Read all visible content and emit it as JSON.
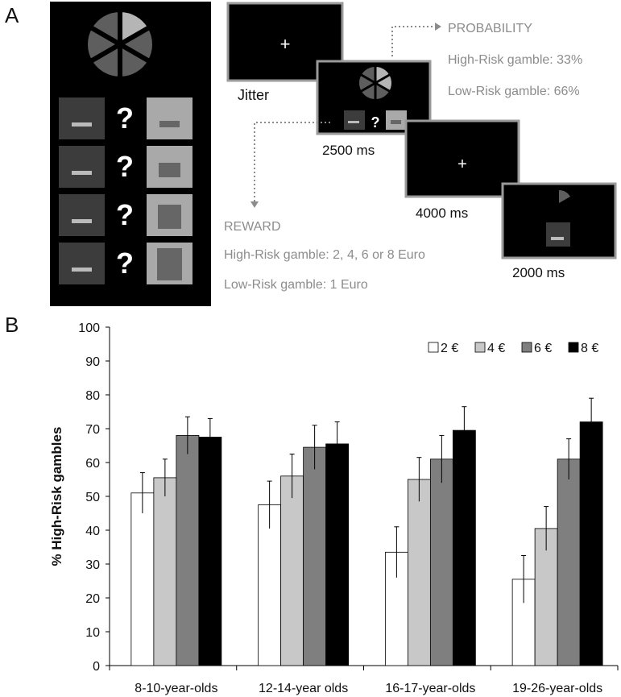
{
  "panels": {
    "a": "A",
    "b": "B"
  },
  "task": {
    "question_mark": "?",
    "fixation": "+",
    "jitter_label": "Jitter",
    "timings": [
      "2500 ms",
      "4000 ms",
      "2000 ms"
    ],
    "probability": {
      "heading": "PROBABILITY",
      "high": "High-Risk gamble: 33%",
      "low": "Low-Risk gamble: 66%"
    },
    "reward": {
      "heading": "REWARD",
      "high": "High-Risk gamble: 2, 4, 6 or 8 Euro",
      "low": "Low-Risk gamble: 1 Euro"
    }
  },
  "chart_data": {
    "type": "bar",
    "ylabel": "% High-Risk gambles",
    "ylim": [
      0,
      100
    ],
    "yticks": [
      0,
      10,
      20,
      30,
      40,
      50,
      60,
      70,
      80,
      90,
      100
    ],
    "categories": [
      "8-10-year-olds",
      "12-14-year olds",
      "16-17-year-olds",
      "19-26-year-olds"
    ],
    "legend_position": "top-right",
    "grid": false,
    "series": [
      {
        "name": "2 €",
        "color": "#ffffff",
        "values": [
          51,
          47.5,
          33.5,
          25.5
        ],
        "errors": [
          6,
          7,
          7.5,
          7
        ]
      },
      {
        "name": "4 €",
        "color": "#c8c8c8",
        "values": [
          55.5,
          56,
          55,
          40.5
        ],
        "errors": [
          5.5,
          6.5,
          6.5,
          6.5
        ]
      },
      {
        "name": "6 €",
        "color": "#7f7f7f",
        "values": [
          68,
          64.5,
          61,
          61
        ],
        "errors": [
          5.5,
          6.5,
          7,
          6
        ]
      },
      {
        "name": "8 €",
        "color": "#000000",
        "values": [
          67.5,
          65.5,
          69.5,
          72
        ],
        "errors": [
          5.5,
          6.5,
          7,
          7
        ]
      }
    ]
  }
}
